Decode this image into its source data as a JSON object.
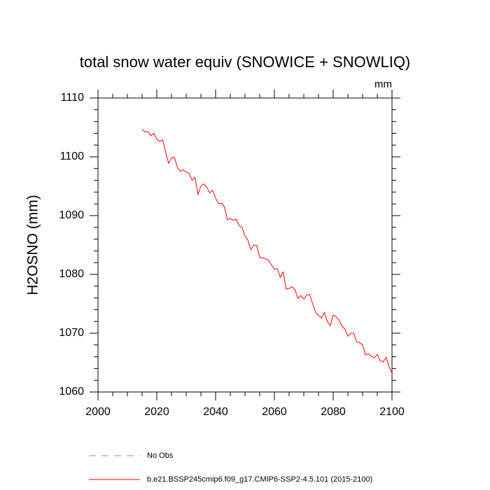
{
  "chart_data": {
    "type": "line",
    "title": "total snow water equiv (SNOWICE + SNOWLIQ)",
    "units": "mm",
    "y_label": "H2OSNO  (mm)",
    "x": [
      2015,
      2016,
      2017,
      2018,
      2019,
      2020,
      2021,
      2022,
      2023,
      2024,
      2025,
      2026,
      2027,
      2028,
      2029,
      2030,
      2031,
      2032,
      2033,
      2034,
      2035,
      2036,
      2037,
      2038,
      2039,
      2040,
      2041,
      2042,
      2043,
      2044,
      2045,
      2046,
      2047,
      2048,
      2049,
      2050,
      2051,
      2052,
      2053,
      2054,
      2055,
      2056,
      2057,
      2058,
      2059,
      2060,
      2061,
      2062,
      2063,
      2064,
      2065,
      2066,
      2067,
      2068,
      2069,
      2070,
      2071,
      2072,
      2073,
      2074,
      2075,
      2076,
      2077,
      2078,
      2079,
      2080,
      2081,
      2082,
      2083,
      2084,
      2085,
      2086,
      2087,
      2088,
      2089,
      2090,
      2091,
      2092,
      2093,
      2094,
      2095,
      2096,
      2097,
      2098,
      2099,
      2100
    ],
    "series": [
      {
        "name": "b.e21.BSSP245cmip6.f09_g17.CMIP6-SSP2-4.5.101 (2015-2100)",
        "color": "#ff0000",
        "values": [
          1104.7,
          1104.2,
          1104.3,
          1103.6,
          1104.0,
          1103.0,
          1102.6,
          1102.9,
          1100.8,
          1098.9,
          1099.8,
          1099.9,
          1098.2,
          1097.5,
          1097.8,
          1097.4,
          1097.2,
          1096.0,
          1096.5,
          1093.6,
          1095.0,
          1095.4,
          1094.8,
          1093.9,
          1094.3,
          1093.0,
          1092.0,
          1092.1,
          1091.5,
          1089.3,
          1089.5,
          1089.2,
          1089.4,
          1088.3,
          1088.0,
          1086.5,
          1085.8,
          1084.2,
          1085.0,
          1084.9,
          1082.9,
          1082.8,
          1082.7,
          1082.4,
          1081.6,
          1080.9,
          1081.0,
          1079.5,
          1080.4,
          1077.5,
          1077.6,
          1077.9,
          1077.4,
          1075.9,
          1076.4,
          1075.8,
          1076.5,
          1076.6,
          1075.0,
          1073.6,
          1073.0,
          1072.6,
          1073.5,
          1072.0,
          1071.3,
          1073.1,
          1072.8,
          1072.2,
          1071.2,
          1070.7,
          1069.5,
          1070.0,
          1070.0,
          1068.5,
          1068.4,
          1068.0,
          1066.3,
          1066.5,
          1066.1,
          1065.8,
          1066.4,
          1065.3,
          1065.1,
          1065.9,
          1064.3,
          1063.2
        ]
      }
    ],
    "reference": {
      "name": "No Obs",
      "color": "#8080ff",
      "dash": true
    },
    "xlim": [
      2000,
      2100
    ],
    "xticks": [
      2000,
      2020,
      2040,
      2060,
      2080,
      2100
    ],
    "xminorticks": [
      2005,
      2010,
      2015,
      2025,
      2030,
      2035,
      2045,
      2050,
      2055,
      2065,
      2070,
      2075,
      2085,
      2090,
      2095
    ],
    "ylim": [
      1060,
      1110
    ],
    "yticks": [
      1060,
      1070,
      1080,
      1090,
      1100,
      1110
    ],
    "yminorticks": [
      1062,
      1064,
      1066,
      1068,
      1072,
      1074,
      1076,
      1078,
      1082,
      1084,
      1086,
      1088,
      1092,
      1094,
      1096,
      1098,
      1102,
      1104,
      1106,
      1108
    ]
  }
}
